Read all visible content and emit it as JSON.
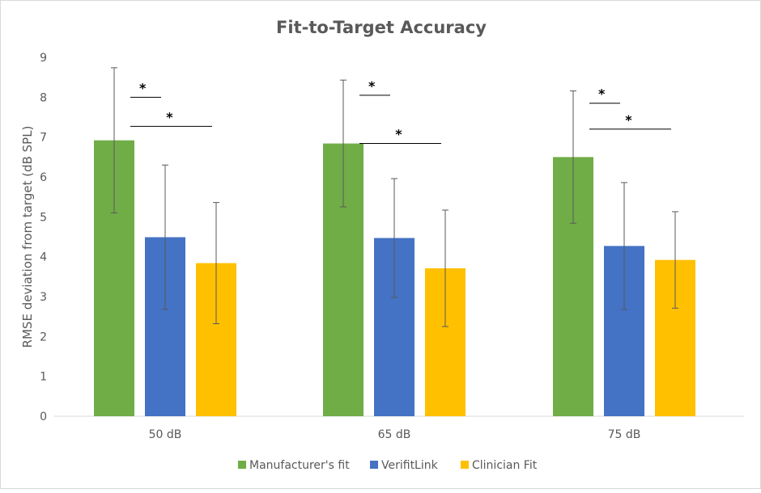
{
  "chart_data": {
    "type": "bar",
    "title": "Fit-to-Target Accuracy",
    "xlabel": "",
    "ylabel": "RMSE deviation from target (dB SPL)",
    "ylim": [
      0,
      9
    ],
    "yticks": [
      0,
      1,
      2,
      3,
      4,
      5,
      6,
      7,
      8,
      9
    ],
    "grid": false,
    "legend_position": "bottom",
    "categories": [
      "50 dB",
      "65 dB",
      "75 dB"
    ],
    "series": [
      {
        "name": "Manufacturer's fit",
        "color": "#70ad47",
        "values": [
          6.92,
          6.84,
          6.5
        ],
        "error": [
          1.82,
          1.59,
          1.66
        ]
      },
      {
        "name": "VerifitLink",
        "color": "#4472c4",
        "values": [
          4.49,
          4.47,
          4.27
        ],
        "error": [
          1.81,
          1.49,
          1.59
        ]
      },
      {
        "name": "Clinician Fit",
        "color": "#ffc000",
        "values": [
          3.84,
          3.71,
          3.92
        ],
        "error": [
          1.52,
          1.46,
          1.21
        ]
      }
    ],
    "significance": [
      {
        "category": 0,
        "from_series": 0,
        "to_series": 1,
        "label": "*"
      },
      {
        "category": 0,
        "from_series": 0,
        "to_series": 2,
        "label": "*"
      },
      {
        "category": 1,
        "from_series": 0,
        "to_series": 1,
        "label": "*"
      },
      {
        "category": 1,
        "from_series": 0,
        "to_series": 2,
        "label": "*"
      },
      {
        "category": 2,
        "from_series": 0,
        "to_series": 1,
        "label": "*"
      },
      {
        "category": 2,
        "from_series": 0,
        "to_series": 2,
        "label": "*"
      }
    ]
  }
}
